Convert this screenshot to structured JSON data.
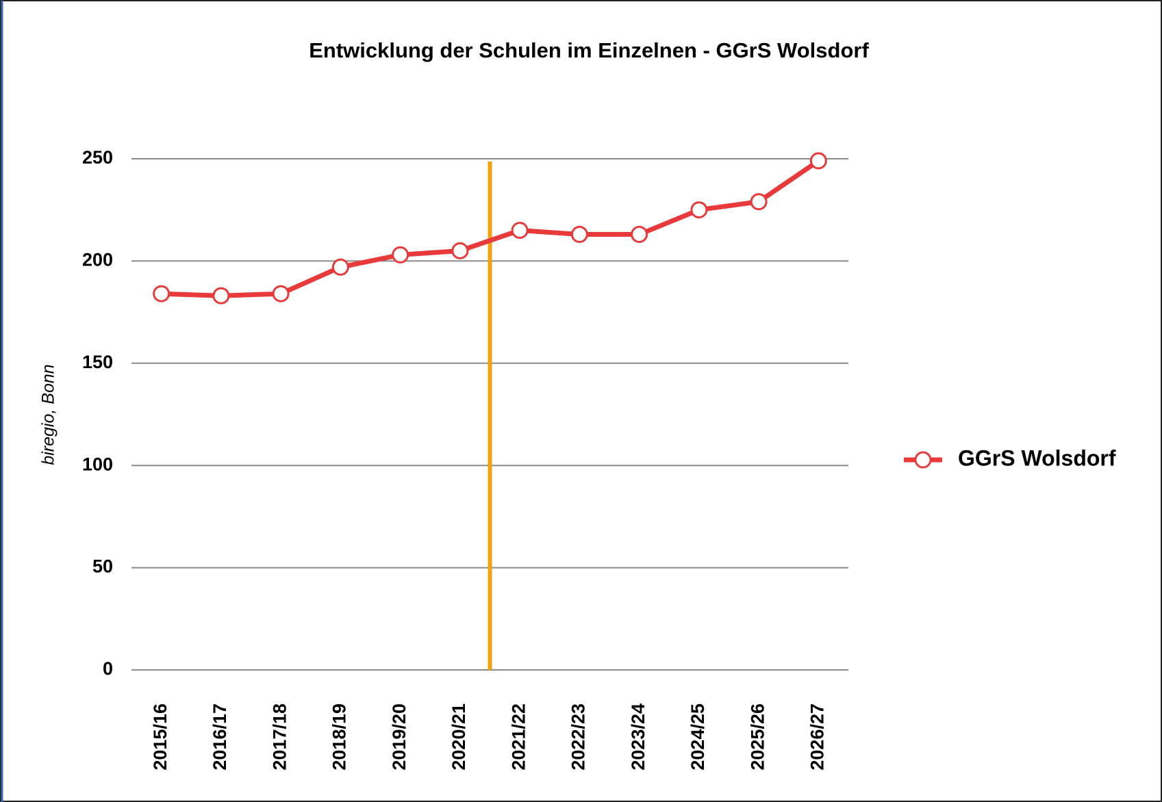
{
  "chart_data": {
    "type": "line",
    "title": "Entwicklung der Schulen im Einzelnen - GGrS Wolsdorf",
    "y_label": "biregio, Bonn",
    "categories": [
      "2015/16",
      "2016/17",
      "2017/18",
      "2018/19",
      "2019/20",
      "2020/21",
      "2021/22",
      "2022/23",
      "2023/24",
      "2024/25",
      "2025/26",
      "2026/27"
    ],
    "series": [
      {
        "name": "GGrS Wolsdorf",
        "color": "#e83a3a",
        "values": [
          184,
          183,
          184,
          197,
          203,
          205,
          215,
          213,
          213,
          225,
          229,
          249
        ]
      }
    ],
    "ylim": [
      0,
      250
    ],
    "yticks": [
      0,
      50,
      100,
      150,
      200,
      250
    ],
    "grid": true,
    "legend": "right"
  }
}
